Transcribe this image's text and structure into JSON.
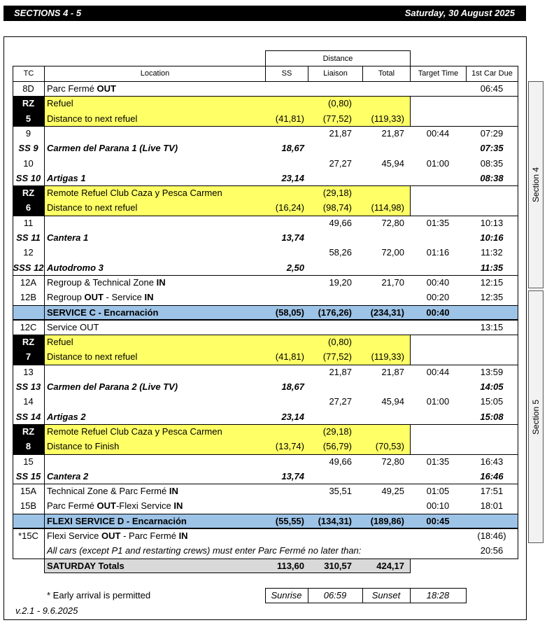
{
  "header": {
    "title": "SECTIONS 4 - 5",
    "date": "Saturday, 30 August 2025"
  },
  "table": {
    "group_header": "Distance",
    "columns": [
      "TC",
      "Location",
      "SS",
      "Liaison",
      "Total",
      "Target Time",
      "1st Car Due"
    ],
    "rows": [
      [
        "8D",
        [
          "Parc Fermé ",
          "OUT"
        ],
        null,
        null,
        null,
        null,
        "06:45"
      ],
      [
        "RZ",
        [
          "Refuel"
        ],
        null,
        "(0,80)",
        null,
        null,
        null
      ],
      [
        "5",
        [
          "Distance to next refuel"
        ],
        "(41,81)",
        "(77,52)",
        "(119,33)",
        null,
        null
      ],
      [
        "9",
        null,
        null,
        "21,87",
        "21,87",
        "00:44",
        "07:29"
      ],
      [
        "SS 9",
        [
          "Carmen del Parana 1 (Live TV)"
        ],
        "18,67",
        null,
        null,
        null,
        "07:35"
      ],
      [
        "10",
        null,
        null,
        "27,27",
        "45,94",
        "01:00",
        "08:35"
      ],
      [
        "SS 10",
        [
          "Artigas 1"
        ],
        "23,14",
        null,
        null,
        null,
        "08:38"
      ],
      [
        "RZ",
        [
          "Remote Refuel Club Caza y Pesca Carmen"
        ],
        null,
        "(29,18)",
        null,
        null,
        null
      ],
      [
        "6",
        [
          "Distance to next refuel"
        ],
        "(16,24)",
        "(98,74)",
        "(114,98)",
        null,
        null
      ],
      [
        "11",
        null,
        null,
        "49,66",
        "72,80",
        "01:35",
        "10:13"
      ],
      [
        "SS 11",
        [
          "Cantera 1"
        ],
        "13,74",
        null,
        null,
        null,
        "10:16"
      ],
      [
        "12",
        null,
        null,
        "58,26",
        "72,00",
        "01:16",
        "11:32"
      ],
      [
        "SSS 12",
        [
          "Autodromo 3"
        ],
        "2,50",
        null,
        null,
        null,
        "11:35"
      ],
      [
        "12A",
        [
          "Regroup & Technical Zone ",
          "IN"
        ],
        null,
        "19,20",
        "21,70",
        "00:40",
        "12:15"
      ],
      [
        "12B",
        [
          "Regroup ",
          "OUT",
          " - Service ",
          "IN"
        ],
        null,
        null,
        null,
        "00:20",
        "12:35"
      ],
      [
        null,
        [
          "SERVICE C - Encarnación"
        ],
        "(58,05)",
        "(176,26)",
        "(234,31)",
        "00:40",
        null
      ],
      [
        "12C",
        [
          "Service OUT"
        ],
        null,
        null,
        null,
        null,
        "13:15"
      ],
      [
        "RZ",
        [
          "Refuel"
        ],
        null,
        "(0,80)",
        null,
        null,
        null
      ],
      [
        "7",
        [
          "Distance to next refuel"
        ],
        "(41,81)",
        "(77,52)",
        "(119,33)",
        null,
        null
      ],
      [
        "13",
        null,
        null,
        "21,87",
        "21,87",
        "00:44",
        "13:59"
      ],
      [
        "SS 13",
        [
          "Carmen del Parana 2 (Live TV)"
        ],
        "18,67",
        null,
        null,
        null,
        "14:05"
      ],
      [
        "14",
        null,
        null,
        "27,27",
        "45,94",
        "01:00",
        "15:05"
      ],
      [
        "SS 14",
        [
          "Artigas 2"
        ],
        "23,14",
        null,
        null,
        null,
        "15:08"
      ],
      [
        "RZ",
        [
          "Remote Refuel Club Caza y Pesca Carmen"
        ],
        null,
        "(29,18)",
        null,
        null,
        null
      ],
      [
        "8",
        [
          "Distance to Finish"
        ],
        "(13,74)",
        "(56,79)",
        "(70,53)",
        null,
        null
      ],
      [
        "15",
        null,
        null,
        "49,66",
        "72,80",
        "01:35",
        "16:43"
      ],
      [
        "SS 15",
        [
          "Cantera 2"
        ],
        "13,74",
        null,
        null,
        null,
        "16:46"
      ],
      [
        "15A",
        [
          "Technical Zone & Parc Fermé ",
          "IN"
        ],
        null,
        "35,51",
        "49,25",
        "01:05",
        "17:51"
      ],
      [
        "15B",
        [
          "Parc Fermé ",
          "OUT",
          "-Flexi Service ",
          "IN"
        ],
        null,
        null,
        null,
        "00:10",
        "18:01"
      ],
      [
        null,
        [
          "FLEXI SERVICE D - Encarnación"
        ],
        "(55,55)",
        "(134,31)",
        "(189,86)",
        "00:45",
        null
      ],
      [
        "*15C",
        [
          "Flexi Service ",
          "OUT",
          " - Parc Fermé ",
          "IN"
        ],
        null,
        null,
        null,
        null,
        "(18:46)"
      ],
      [
        null,
        [
          "All cars (except P1 and restarting crews) must enter Parc Fermé no later than:"
        ],
        null,
        null,
        null,
        null,
        "20:56"
      ],
      [
        null,
        [
          "SATURDAY Totals"
        ],
        "113,60",
        "310,57",
        "424,17",
        null,
        null
      ]
    ]
  },
  "sections": [
    "Section 4",
    "Section 5"
  ],
  "footer": {
    "note": "* Early arrival is permitted",
    "sunrise_label": "Sunrise",
    "sunrise": "06:59",
    "sunset_label": "Sunset",
    "sunset": "18:28",
    "version": "v.2.1 - 9.6.2025"
  }
}
